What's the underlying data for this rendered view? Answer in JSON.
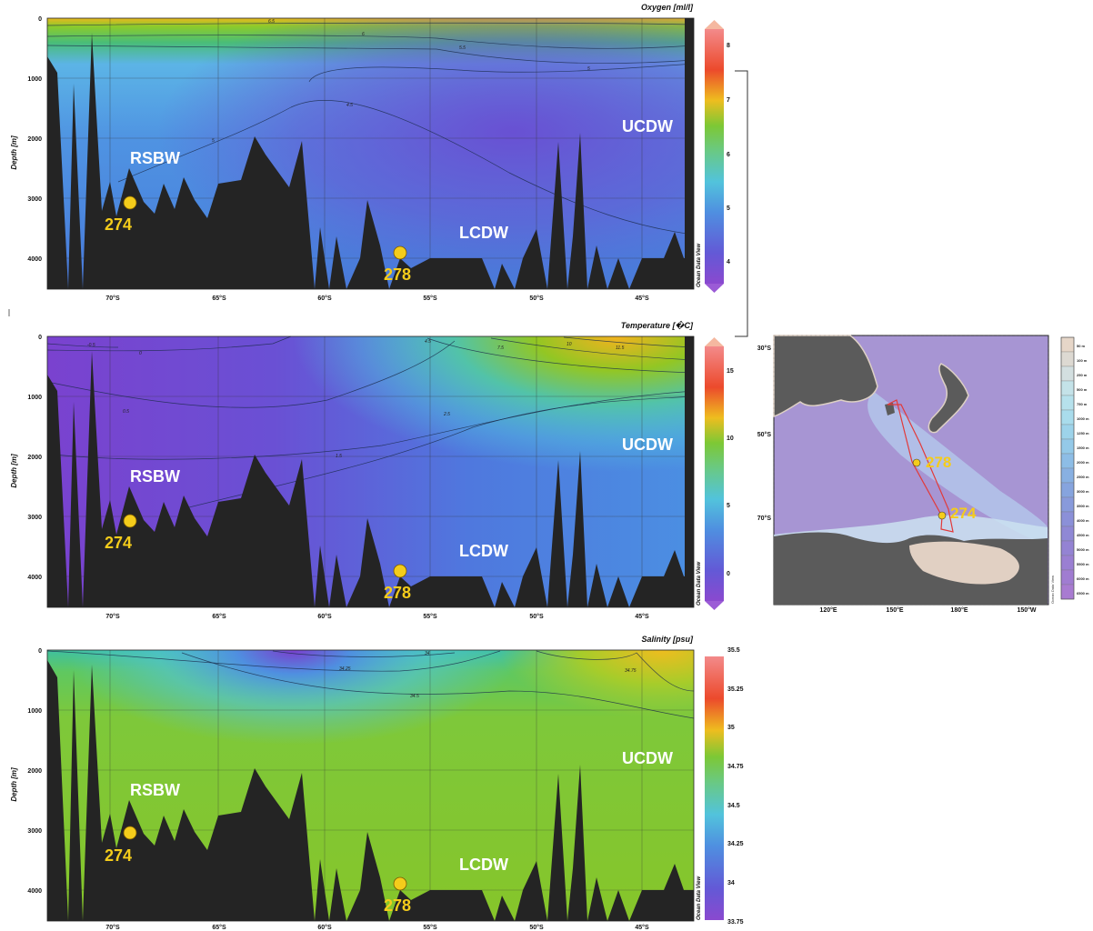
{
  "figure": {
    "map": {
      "lat_ticks": [
        "30°S",
        "50°S",
        "70°S"
      ],
      "lon_ticks": [
        "120°E",
        "150°E",
        "180°E",
        "150°W"
      ],
      "stations": [
        "278",
        "274"
      ],
      "legend_depths": [
        "50 m",
        "100 m",
        "250 m",
        "500 m",
        "750 m",
        "1000 m",
        "1250 m",
        "1500 m",
        "2000 m",
        "2500 m",
        "3000 m",
        "3500 m",
        "4000 m",
        "4500 m",
        "5000 m",
        "5500 m",
        "6000 m",
        "6500 m"
      ],
      "legend_colors": [
        "#e6d6c8",
        "#ddd9d2",
        "#d3dfe0",
        "#c4e2e8",
        "#b6e1ec",
        "#a9dcec",
        "#9dd3ea",
        "#94c9e8",
        "#8dbde6",
        "#88b0e2",
        "#86a4de",
        "#889adb",
        "#8b90d8",
        "#8f88d5",
        "#9483d3",
        "#9a7fd2",
        "#a07cd1",
        "#a87bd1"
      ],
      "brand": "Ocean Data View"
    }
  },
  "chart_data": [
    {
      "type": "heatmap",
      "title": "Oxygen [ml/l]",
      "ylabel": "Depth [m]",
      "xlabel": "",
      "x_ticks": [
        "70°S",
        "65°S",
        "60°S",
        "55°S",
        "50°S",
        "45°S"
      ],
      "y_ticks": [
        "0",
        "1000",
        "2000",
        "3000",
        "4000"
      ],
      "ylim": [
        0,
        4500
      ],
      "colorbar_ticks": [
        "8",
        "7",
        "6",
        "5",
        "4"
      ],
      "colorbar_range": [
        3.5,
        8.5
      ],
      "colorscale": [
        "#8a49cf",
        "#6359d6",
        "#4f8fe0",
        "#52c3dc",
        "#69c985",
        "#7dc835",
        "#93c623",
        "#eebd1f",
        "#f1a21f",
        "#ec4a2c",
        "#f38a8a"
      ],
      "water_masses": [
        "RSBW",
        "UCDW",
        "LCDW"
      ],
      "stations": [
        {
          "id": "274",
          "lat": -69.3,
          "depth": 3060
        },
        {
          "id": "278",
          "lat": -56.3,
          "depth": 3900
        }
      ],
      "contour_labels": [
        "6.5",
        "6",
        "5.5",
        "5",
        "4.5",
        "5"
      ],
      "brand": "Ocean Data View"
    },
    {
      "type": "heatmap",
      "title": "Temperature [�C]",
      "ylabel": "Depth [m]",
      "xlabel": "",
      "x_ticks": [
        "70°S",
        "65°S",
        "60°S",
        "55°S",
        "50°S",
        "45°S"
      ],
      "y_ticks": [
        "0",
        "1000",
        "2000",
        "3000",
        "4000"
      ],
      "ylim": [
        0,
        4500
      ],
      "colorbar_ticks": [
        "15",
        "10",
        "5",
        "0"
      ],
      "colorbar_range": [
        -2.5,
        17.5
      ],
      "colorscale": [
        "#8a49cf",
        "#6359d6",
        "#4f8fe0",
        "#52c3dc",
        "#69c985",
        "#7dc835",
        "#93c623",
        "#eebd1f",
        "#f1a21f",
        "#ec4a2c",
        "#f38a8a"
      ],
      "water_masses": [
        "RSBW",
        "UCDW",
        "LCDW"
      ],
      "stations": [
        {
          "id": "274",
          "lat": -69.3,
          "depth": 3060
        },
        {
          "id": "278",
          "lat": -56.3,
          "depth": 3900
        }
      ],
      "contour_labels": [
        "-0.5",
        "0",
        "0.5",
        "1.5",
        "2.5",
        "4.5",
        "7.5",
        "10",
        "11.5"
      ],
      "brand": "Ocean Data View"
    },
    {
      "type": "heatmap",
      "title": "Salinity [psu]",
      "ylabel": "Depth [m]",
      "xlabel": "",
      "x_ticks": [
        "70°S",
        "65°S",
        "60°S",
        "55°S",
        "50°S",
        "45°S"
      ],
      "y_ticks": [
        "0",
        "1000",
        "2000",
        "3000",
        "4000"
      ],
      "ylim": [
        0,
        4500
      ],
      "colorbar_ticks": [
        "35.5",
        "35.25",
        "35",
        "34.75",
        "34.5",
        "34.25",
        "34",
        "33.75"
      ],
      "colorbar_range": [
        33.75,
        35.5
      ],
      "colorscale": [
        "#8a49cf",
        "#6359d6",
        "#4f8fe0",
        "#52c3dc",
        "#69c985",
        "#7dc835",
        "#93c623",
        "#eebd1f",
        "#f1a21f",
        "#ec4a2c",
        "#f38a8a"
      ],
      "water_masses": [
        "RSBW",
        "UCDW",
        "LCDW"
      ],
      "stations": [
        {
          "id": "274",
          "lat": -69.3,
          "depth": 3060
        },
        {
          "id": "278",
          "lat": -56.3,
          "depth": 3900
        }
      ],
      "contour_labels": [
        "34",
        "34.25",
        "34.5",
        "34.75"
      ],
      "brand": "Ocean Data View"
    }
  ]
}
